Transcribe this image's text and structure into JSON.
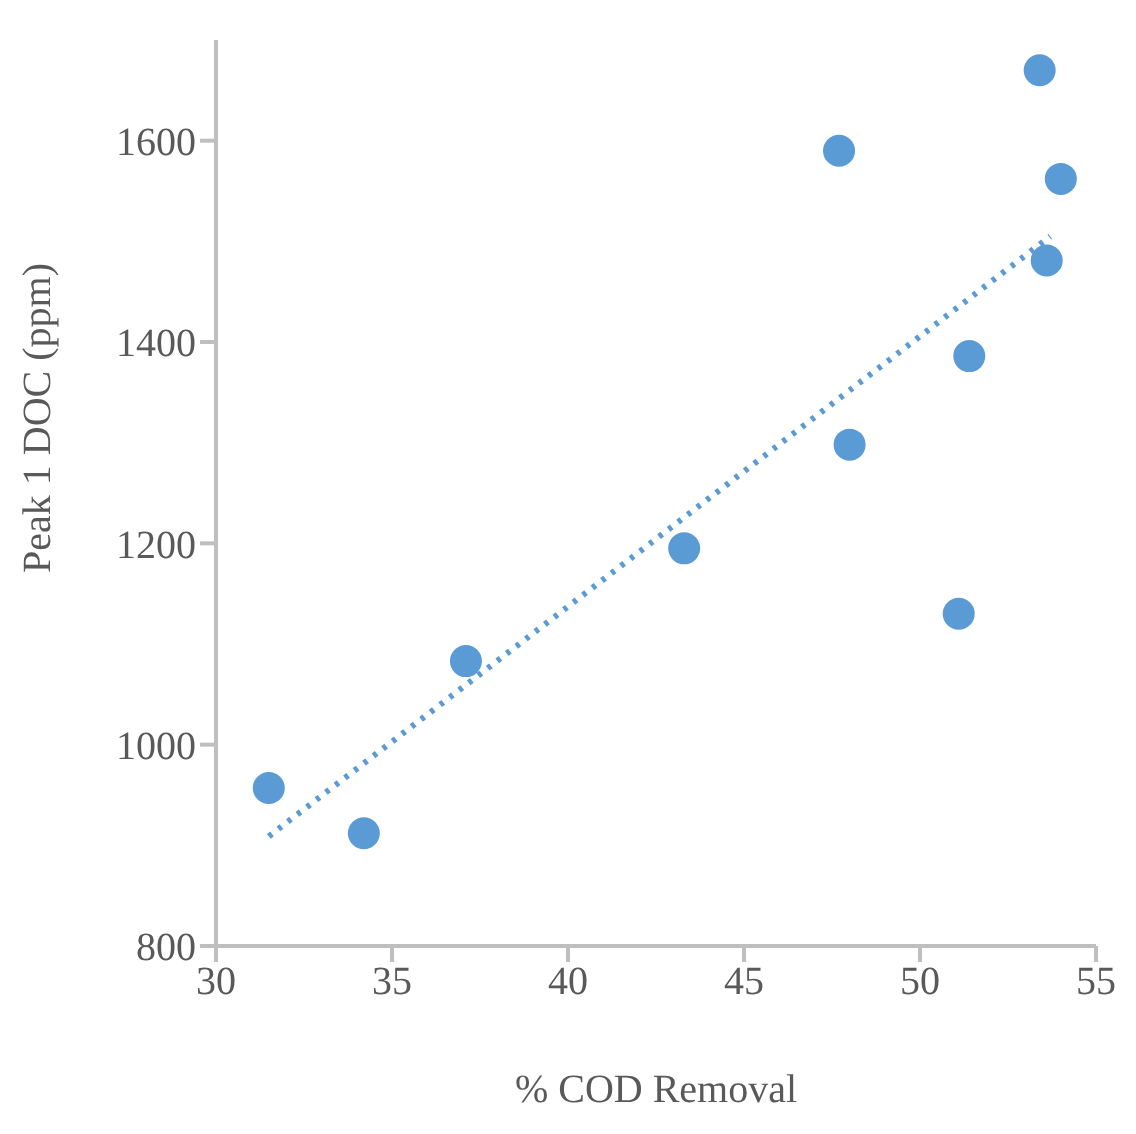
{
  "chart_data": {
    "type": "scatter",
    "xlabel": "% COD Removal",
    "ylabel": "Peak 1 DOC (ppm)",
    "xlim": [
      30,
      55
    ],
    "xticks": [
      30,
      35,
      40,
      45,
      50,
      55
    ],
    "ylim": [
      800,
      1700
    ],
    "yticks": [
      800,
      1000,
      1200,
      1400,
      1600
    ],
    "grid": false,
    "marker": "circle",
    "series": [
      {
        "type": "scatter",
        "color": "#5b9bd5",
        "x": [
          31.5,
          34.2,
          37.1,
          43.3,
          47.7,
          48.0,
          51.1,
          51.4,
          53.4,
          53.6,
          54.0
        ],
        "values": [
          957,
          912,
          1083,
          1195,
          1590,
          1298,
          1130,
          1386,
          1670,
          1481,
          1562
        ]
      },
      {
        "type": "line",
        "color": "#5b9bd5",
        "line_style": "dotted",
        "marker": "none",
        "x": [
          31.5,
          53.7
        ],
        "values": [
          909,
          1505
        ]
      }
    ]
  }
}
